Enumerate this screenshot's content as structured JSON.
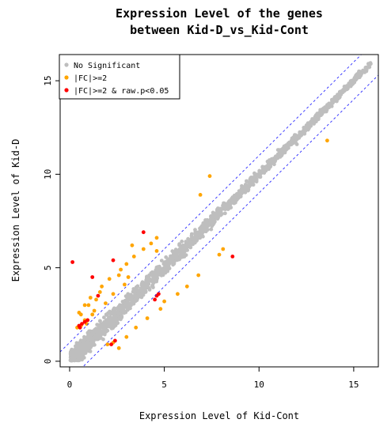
{
  "chart_data": {
    "type": "scatter",
    "title_lines": [
      "Expression Level of the genes",
      "between Kid-D_vs_Kid-Cont"
    ],
    "xlabel": "Expression Level of Kid-Cont",
    "ylabel": "Expression Level of Kid-D",
    "xlim": [
      -0.5,
      16.3
    ],
    "ylim": [
      -0.3,
      16.4
    ],
    "xticks": [
      0,
      5,
      10,
      15
    ],
    "yticks": [
      0,
      5,
      10,
      15
    ],
    "grid": false,
    "legend_position": "top-left",
    "reference_lines": [
      {
        "slope": 1,
        "intercept": 1
      },
      {
        "slope": 1,
        "intercept": -1
      }
    ],
    "series": [
      {
        "name": "No Significant",
        "color": "#bebebe",
        "band": {
          "x_from": 0.05,
          "x_to": 15.9,
          "count": 1700,
          "spread": 0.55
        },
        "points": [
          [
            9.7,
            9.6
          ],
          [
            10.5,
            10.3
          ],
          [
            11.2,
            11.1
          ],
          [
            11.6,
            11.7
          ],
          [
            12.4,
            12.3
          ],
          [
            12.9,
            12.7
          ],
          [
            13.3,
            13.4
          ],
          [
            14.1,
            13.9
          ],
          [
            15.9,
            15.9
          ],
          [
            12.0,
            11.6
          ],
          [
            11.0,
            11.3
          ]
        ]
      },
      {
        "name": "|FC|>=2",
        "color": "#ffa500",
        "points": [
          [
            0.5,
            2.6
          ],
          [
            0.8,
            3.0
          ],
          [
            1.0,
            3.0
          ],
          [
            1.4,
            3.3
          ],
          [
            1.6,
            3.7
          ],
          [
            0.6,
            1.9
          ],
          [
            0.4,
            1.8
          ],
          [
            0.8,
            2.2
          ],
          [
            1.2,
            2.5
          ],
          [
            1.7,
            4.0
          ],
          [
            2.1,
            4.4
          ],
          [
            2.6,
            4.6
          ],
          [
            3.0,
            5.2
          ],
          [
            3.4,
            5.6
          ],
          [
            3.9,
            6.0
          ],
          [
            4.3,
            6.3
          ],
          [
            4.6,
            6.6
          ],
          [
            7.4,
            9.9
          ],
          [
            6.9,
            8.9
          ],
          [
            1.9,
            3.1
          ],
          [
            2.3,
            3.6
          ],
          [
            2.9,
            4.1
          ],
          [
            3.1,
            4.5
          ],
          [
            0.9,
            2.0
          ],
          [
            0.6,
            2.5
          ],
          [
            1.3,
            2.7
          ],
          [
            2.6,
            0.7
          ],
          [
            2.0,
            0.9
          ],
          [
            2.3,
            1.0
          ],
          [
            3.0,
            1.3
          ],
          [
            3.5,
            1.8
          ],
          [
            4.1,
            2.3
          ],
          [
            4.8,
            2.8
          ],
          [
            5.7,
            3.6
          ],
          [
            6.2,
            4.0
          ],
          [
            6.8,
            4.6
          ],
          [
            7.9,
            5.7
          ],
          [
            8.1,
            6.0
          ],
          [
            13.6,
            11.8
          ],
          [
            3.3,
            6.2
          ],
          [
            4.6,
            5.9
          ],
          [
            1.1,
            3.4
          ],
          [
            2.7,
            4.9
          ],
          [
            5.0,
            3.2
          ]
        ]
      },
      {
        "name": "|FC|>=2 & raw.p<0.05",
        "color": "#ff0000",
        "points": [
          [
            0.15,
            5.3
          ],
          [
            0.5,
            1.9
          ],
          [
            0.65,
            2.0
          ],
          [
            0.8,
            2.1
          ],
          [
            0.55,
            1.8
          ],
          [
            0.95,
            2.2
          ],
          [
            1.2,
            4.5
          ],
          [
            2.3,
            5.4
          ],
          [
            3.9,
            6.9
          ],
          [
            2.4,
            1.1
          ],
          [
            4.6,
            3.5
          ],
          [
            4.7,
            3.6
          ],
          [
            8.6,
            5.6
          ],
          [
            1.5,
            3.5
          ],
          [
            2.2,
            0.9
          ],
          [
            4.5,
            3.3
          ]
        ]
      }
    ]
  }
}
